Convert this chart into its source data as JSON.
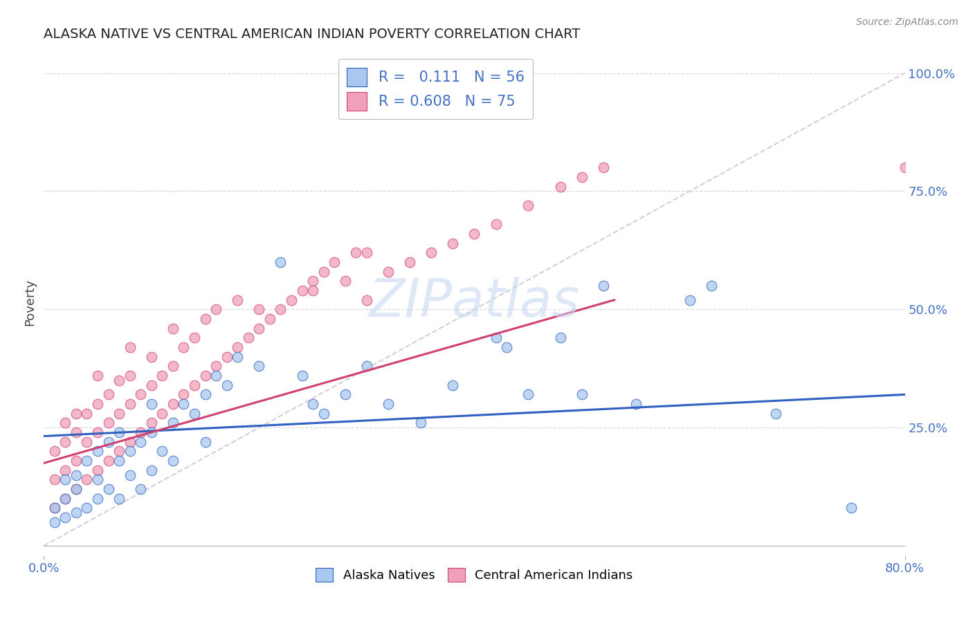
{
  "title": "ALASKA NATIVE VS CENTRAL AMERICAN INDIAN POVERTY CORRELATION CHART",
  "source": "Source: ZipAtlas.com",
  "ylabel": "Poverty",
  "xlim": [
    0.0,
    0.8
  ],
  "ylim": [
    -0.02,
    1.05
  ],
  "plot_ylim": [
    0.0,
    1.0
  ],
  "xticklabels": [
    "0.0%",
    "80.0%"
  ],
  "yticklabels_right": [
    "25.0%",
    "50.0%",
    "75.0%",
    "100.0%"
  ],
  "yticklabels_right_vals": [
    0.25,
    0.5,
    0.75,
    1.0
  ],
  "legend1_label": "R =   0.111   N = 56",
  "legend2_label": "R = 0.608   N = 75",
  "blue_color": "#a8c8f0",
  "pink_color": "#f0a0b8",
  "trend_blue": "#3060c0",
  "trend_pink": "#d04070",
  "diag_color": "#c8c8d8",
  "grid_color": "#d8d8e8",
  "watermark": "ZIPatlas",
  "alaska_x": [
    0.01,
    0.01,
    0.02,
    0.02,
    0.02,
    0.03,
    0.03,
    0.03,
    0.04,
    0.04,
    0.05,
    0.05,
    0.05,
    0.06,
    0.06,
    0.07,
    0.07,
    0.07,
    0.08,
    0.08,
    0.09,
    0.09,
    0.1,
    0.1,
    0.1,
    0.11,
    0.12,
    0.12,
    0.13,
    0.14,
    0.15,
    0.15,
    0.16,
    0.17,
    0.18,
    0.2,
    0.22,
    0.24,
    0.25,
    0.26,
    0.28,
    0.3,
    0.32,
    0.35,
    0.38,
    0.42,
    0.45,
    0.5,
    0.52,
    0.55,
    0.6,
    0.62,
    0.68,
    0.75,
    0.48,
    0.43
  ],
  "alaska_y": [
    0.05,
    0.08,
    0.06,
    0.1,
    0.14,
    0.07,
    0.12,
    0.15,
    0.08,
    0.18,
    0.1,
    0.14,
    0.2,
    0.12,
    0.22,
    0.1,
    0.18,
    0.24,
    0.15,
    0.2,
    0.12,
    0.22,
    0.16,
    0.24,
    0.3,
    0.2,
    0.18,
    0.26,
    0.3,
    0.28,
    0.22,
    0.32,
    0.36,
    0.34,
    0.4,
    0.38,
    0.6,
    0.36,
    0.3,
    0.28,
    0.32,
    0.38,
    0.3,
    0.26,
    0.34,
    0.44,
    0.32,
    0.32,
    0.55,
    0.3,
    0.52,
    0.55,
    0.28,
    0.08,
    0.44,
    0.42
  ],
  "central_x": [
    0.01,
    0.01,
    0.01,
    0.02,
    0.02,
    0.02,
    0.02,
    0.03,
    0.03,
    0.03,
    0.03,
    0.04,
    0.04,
    0.04,
    0.05,
    0.05,
    0.05,
    0.05,
    0.06,
    0.06,
    0.06,
    0.07,
    0.07,
    0.07,
    0.08,
    0.08,
    0.08,
    0.08,
    0.09,
    0.09,
    0.1,
    0.1,
    0.1,
    0.11,
    0.11,
    0.12,
    0.12,
    0.13,
    0.13,
    0.14,
    0.14,
    0.15,
    0.15,
    0.16,
    0.16,
    0.17,
    0.18,
    0.18,
    0.19,
    0.2,
    0.21,
    0.22,
    0.23,
    0.24,
    0.25,
    0.26,
    0.27,
    0.28,
    0.29,
    0.3,
    0.32,
    0.34,
    0.36,
    0.38,
    0.4,
    0.42,
    0.45,
    0.48,
    0.5,
    0.52,
    0.12,
    0.2,
    0.25,
    0.3,
    0.8
  ],
  "central_y": [
    0.08,
    0.14,
    0.2,
    0.1,
    0.16,
    0.22,
    0.26,
    0.12,
    0.18,
    0.24,
    0.28,
    0.14,
    0.22,
    0.28,
    0.16,
    0.24,
    0.3,
    0.36,
    0.18,
    0.26,
    0.32,
    0.2,
    0.28,
    0.35,
    0.22,
    0.3,
    0.36,
    0.42,
    0.24,
    0.32,
    0.26,
    0.34,
    0.4,
    0.28,
    0.36,
    0.3,
    0.38,
    0.32,
    0.42,
    0.34,
    0.44,
    0.36,
    0.48,
    0.38,
    0.5,
    0.4,
    0.42,
    0.52,
    0.44,
    0.46,
    0.48,
    0.5,
    0.52,
    0.54,
    0.56,
    0.58,
    0.6,
    0.56,
    0.62,
    0.62,
    0.58,
    0.6,
    0.62,
    0.64,
    0.66,
    0.68,
    0.72,
    0.76,
    0.78,
    0.8,
    0.46,
    0.5,
    0.54,
    0.52,
    0.8
  ]
}
